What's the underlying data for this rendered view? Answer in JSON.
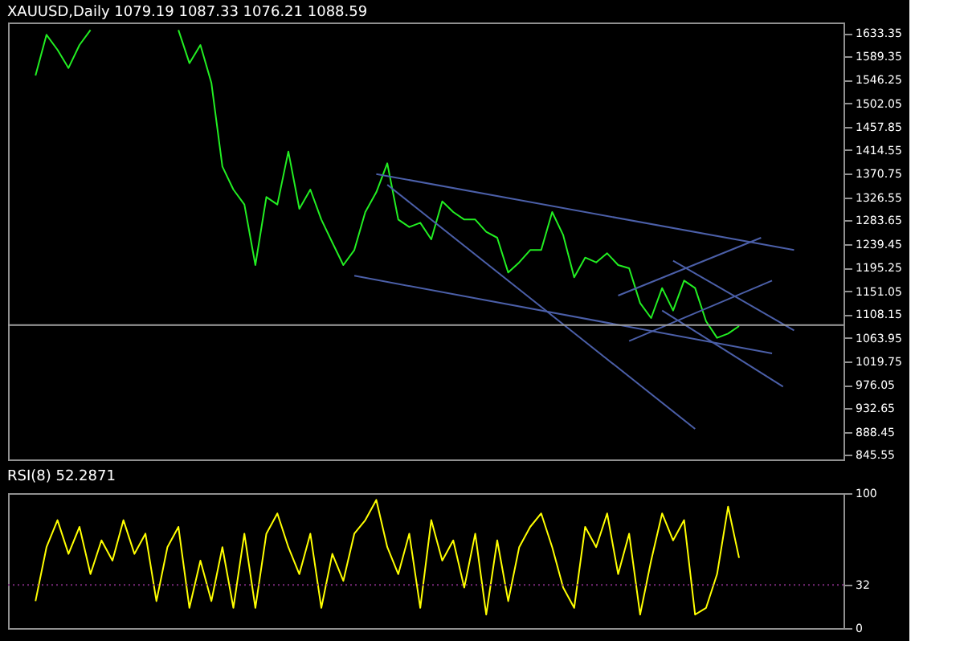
{
  "chart_data": [
    {
      "type": "line",
      "title": "XAUUSD,Daily 1079.19 1087.33 1076.21 1088.59",
      "categories": [
        null,
        null,
        null,
        null,
        null,
        null,
        null,
        null,
        null,
        null,
        null,
        null,
        null,
        null,
        null,
        null,
        null,
        null,
        null,
        null,
        null,
        null,
        null,
        null,
        null,
        null,
        null,
        null,
        null,
        null,
        null,
        null,
        null,
        null,
        null,
        null,
        null,
        null,
        null,
        null,
        null,
        null,
        null,
        null,
        null,
        null,
        null,
        null,
        null,
        null,
        null,
        null,
        null,
        null,
        null,
        null,
        null,
        null,
        null,
        null,
        null,
        null,
        null,
        null,
        null,
        null,
        null,
        null,
        null,
        null,
        null,
        null,
        null,
        null,
        null,
        null
      ],
      "series": [
        {
          "color": "#22ee22",
          "values": [
            null,
            null,
            1554,
            1630,
            1602,
            1568,
            1611,
            1639,
            null,
            null,
            null,
            null,
            null,
            null,
            null,
            null,
            null,
            null,
            null,
            null,
            null,
            null,
            null,
            null,
            null,
            null,
            null,
            null,
            null,
            null,
            null,
            null,
            null,
            null,
            null,
            null,
            null,
            null,
            null,
            null,
            null,
            null,
            null,
            null,
            null,
            null,
            null,
            null,
            null,
            null,
            null,
            null,
            null,
            null,
            null,
            null,
            null,
            null,
            null,
            null,
            null,
            null,
            null,
            null,
            null,
            null,
            null,
            null,
            null,
            null,
            null,
            null,
            null,
            null,
            null,
            null
          ]
        },
        {
          "color": "#22ee22",
          "values": [
            null,
            null,
            null,
            null,
            null,
            null,
            null,
            null,
            null,
            null,
            null,
            null,
            null,
            null,
            null,
            1639,
            1577,
            1611,
            1540,
            1384,
            1341,
            1313,
            1200,
            1327,
            1313,
            1412,
            1305,
            1341,
            1285,
            1242,
            1200,
            1228,
            1299,
            1336,
            1390,
            1285,
            1271,
            1279,
            1248,
            1319,
            1299,
            1285,
            1285,
            1262,
            1251,
            1186,
            1205,
            1228,
            1228,
            1299,
            1256,
            1177,
            1214,
            1205,
            1222,
            1200,
            1194,
            1129,
            1101,
            1157,
            1115,
            1171,
            1157,
            1095,
            1064,
            1072,
            1086,
            null,
            null,
            null,
            null,
            null,
            null,
            null,
            null,
            null
          ]
        },
        {
          "color": "#4b5fa8",
          "values": [
            null,
            null,
            null,
            null,
            null,
            null,
            null,
            null,
            null,
            null,
            null,
            null,
            null,
            null,
            null,
            null,
            null,
            null,
            null,
            null,
            null,
            null,
            null,
            null,
            null,
            null,
            null,
            null,
            null,
            null,
            null,
            null,
            null,
            1370,
            null,
            null,
            null,
            null,
            null,
            null,
            null,
            null,
            null,
            null,
            null,
            null,
            null,
            null,
            null,
            null,
            null,
            null,
            null,
            null,
            null,
            null,
            null,
            null,
            null,
            null,
            null,
            null,
            null,
            null,
            null,
            null,
            null,
            null,
            null,
            null,
            null,
            1228,
            null,
            null,
            null,
            null
          ]
        },
        {
          "color": "#4b5fa8",
          "values": [
            null,
            null,
            null,
            null,
            null,
            null,
            null,
            null,
            null,
            null,
            null,
            null,
            null,
            null,
            null,
            null,
            null,
            null,
            null,
            null,
            null,
            null,
            null,
            null,
            null,
            null,
            null,
            null,
            null,
            null,
            null,
            1180,
            null,
            null,
            null,
            null,
            null,
            null,
            null,
            null,
            null,
            null,
            null,
            null,
            null,
            null,
            null,
            null,
            null,
            null,
            null,
            null,
            null,
            null,
            null,
            null,
            null,
            null,
            null,
            null,
            null,
            null,
            null,
            null,
            null,
            null,
            null,
            null,
            null,
            1035,
            null,
            null,
            null,
            null,
            null,
            null
          ]
        },
        {
          "color": "#4b5fa8",
          "values": [
            null,
            null,
            null,
            null,
            null,
            null,
            null,
            null,
            null,
            null,
            null,
            null,
            null,
            null,
            null,
            null,
            null,
            null,
            null,
            null,
            null,
            null,
            null,
            null,
            null,
            null,
            null,
            null,
            null,
            null,
            null,
            null,
            null,
            null,
            1350,
            null,
            null,
            null,
            null,
            null,
            null,
            null,
            null,
            null,
            null,
            null,
            null,
            null,
            null,
            null,
            null,
            null,
            null,
            null,
            null,
            null,
            null,
            null,
            null,
            null,
            null,
            null,
            894,
            null,
            null,
            null,
            null,
            null,
            null,
            null,
            null,
            null,
            null,
            null,
            null,
            null
          ]
        },
        {
          "color": "#4b5fa8",
          "values": [
            null,
            null,
            null,
            null,
            null,
            null,
            null,
            null,
            null,
            null,
            null,
            null,
            null,
            null,
            null,
            null,
            null,
            null,
            null,
            null,
            null,
            null,
            null,
            null,
            null,
            null,
            null,
            null,
            null,
            null,
            null,
            null,
            null,
            null,
            null,
            null,
            null,
            null,
            null,
            null,
            null,
            null,
            null,
            null,
            null,
            null,
            null,
            null,
            null,
            null,
            null,
            null,
            null,
            null,
            null,
            null,
            1058,
            null,
            null,
            null,
            null,
            null,
            null,
            null,
            null,
            null,
            null,
            null,
            null,
            1171,
            null,
            null,
            null,
            null,
            null,
            null
          ]
        },
        {
          "color": "#4b5fa8",
          "values": [
            null,
            null,
            null,
            null,
            null,
            null,
            null,
            null,
            null,
            null,
            null,
            null,
            null,
            null,
            null,
            null,
            null,
            null,
            null,
            null,
            null,
            null,
            null,
            null,
            null,
            null,
            null,
            null,
            null,
            null,
            null,
            null,
            null,
            null,
            null,
            null,
            null,
            null,
            null,
            null,
            null,
            null,
            null,
            null,
            null,
            null,
            null,
            null,
            null,
            null,
            null,
            null,
            null,
            null,
            null,
            1143,
            null,
            null,
            null,
            null,
            null,
            null,
            null,
            null,
            null,
            null,
            null,
            null,
            1251,
            null,
            null,
            null,
            null,
            null,
            null,
            null
          ]
        },
        {
          "color": "#4b5fa8",
          "values": [
            null,
            null,
            null,
            null,
            null,
            null,
            null,
            null,
            null,
            null,
            null,
            null,
            null,
            null,
            null,
            null,
            null,
            null,
            null,
            null,
            null,
            null,
            null,
            null,
            null,
            null,
            null,
            null,
            null,
            null,
            null,
            null,
            null,
            null,
            null,
            null,
            null,
            null,
            null,
            null,
            null,
            null,
            null,
            null,
            null,
            null,
            null,
            null,
            null,
            null,
            null,
            null,
            null,
            null,
            null,
            null,
            null,
            null,
            null,
            null,
            1208,
            null,
            null,
            null,
            null,
            null,
            null,
            null,
            null,
            null,
            null,
            1078,
            null,
            null,
            null,
            null
          ]
        },
        {
          "color": "#4b5fa8",
          "values": [
            null,
            null,
            null,
            null,
            null,
            null,
            null,
            null,
            null,
            null,
            null,
            null,
            null,
            null,
            null,
            null,
            null,
            null,
            null,
            null,
            null,
            null,
            null,
            null,
            null,
            null,
            null,
            null,
            null,
            null,
            null,
            null,
            null,
            null,
            null,
            null,
            null,
            null,
            null,
            null,
            null,
            null,
            null,
            null,
            null,
            null,
            null,
            null,
            null,
            null,
            null,
            null,
            null,
            null,
            null,
            null,
            null,
            null,
            null,
            1115,
            null,
            null,
            null,
            null,
            null,
            null,
            null,
            null,
            null,
            null,
            973,
            null,
            null,
            null,
            null,
            null
          ]
        }
      ],
      "ylim": [
        837,
        1653
      ],
      "yticks": [
        1633.35,
        1589.35,
        1546.25,
        1502.05,
        1457.85,
        1414.55,
        1370.75,
        1326.55,
        1283.65,
        1239.45,
        1195.25,
        1151.05,
        1108.15,
        1063.95,
        1019.75,
        976.05,
        932.65,
        888.45,
        845.55
      ],
      "ref_lines": [
        {
          "axis": "y",
          "value": 1088,
          "color": "#a0a0a0"
        }
      ],
      "tick_labels": "y",
      "grid": false
    },
    {
      "type": "line",
      "title": "RSI(8) 52.2871",
      "categories": [
        null,
        null,
        null,
        null,
        null,
        null,
        null,
        null,
        null,
        null,
        null,
        null,
        null,
        null,
        null,
        null,
        null,
        null,
        null,
        null,
        null,
        null,
        null,
        null,
        null,
        null,
        null,
        null,
        null,
        null,
        null,
        null,
        null,
        null,
        null,
        null,
        null,
        null,
        null,
        null,
        null,
        null,
        null,
        null,
        null,
        null,
        null,
        null,
        null,
        null,
        null,
        null,
        null,
        null,
        null,
        null,
        null,
        null,
        null,
        null,
        null,
        null,
        null,
        null,
        null,
        null,
        null,
        null,
        null,
        null,
        null,
        null,
        null,
        null,
        null,
        null
      ],
      "series": [
        {
          "color": "#ffff00",
          "values": [
            null,
            null,
            20,
            60,
            80,
            55,
            75,
            40,
            65,
            50,
            80,
            55,
            70,
            20,
            60,
            75,
            15,
            50,
            20,
            60,
            15,
            70,
            15,
            70,
            85,
            60,
            40,
            70,
            15,
            55,
            35,
            70,
            80,
            95,
            60,
            40,
            70,
            15,
            80,
            50,
            65,
            30,
            70,
            10,
            65,
            20,
            60,
            75,
            85,
            60,
            30,
            15,
            75,
            60,
            85,
            40,
            70,
            10,
            50,
            85,
            65,
            80,
            10,
            15,
            40,
            90,
            52,
            null,
            null,
            null,
            null,
            null,
            null,
            null,
            null,
            null
          ]
        }
      ],
      "ylim": [
        0,
        100
      ],
      "yticks": [
        0,
        32,
        100
      ],
      "ref_lines": [
        {
          "axis": "y",
          "value": 32,
          "color": "#7a2a7a",
          "line_style": "dotted"
        }
      ],
      "tick_labels": "y",
      "grid": false
    }
  ]
}
